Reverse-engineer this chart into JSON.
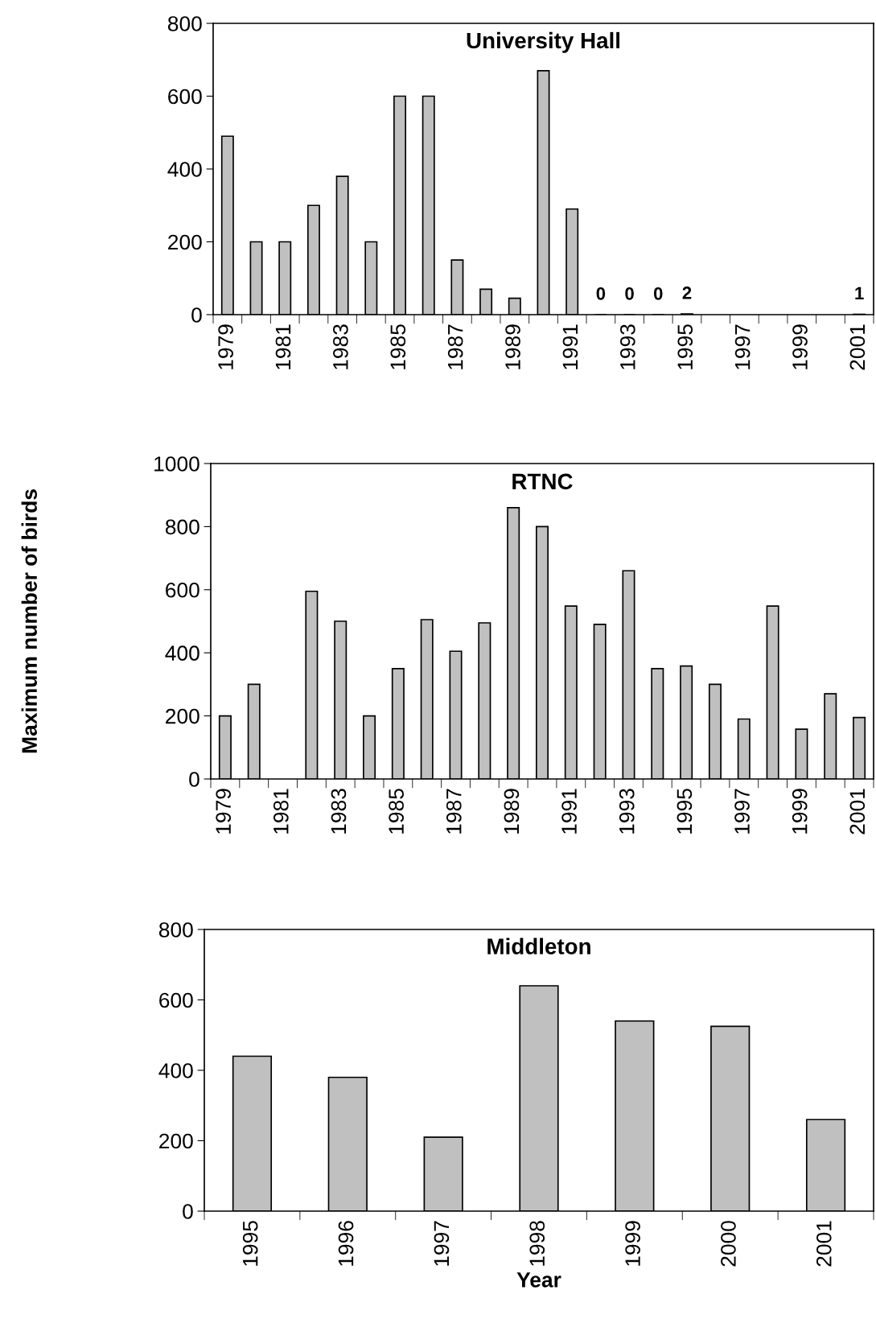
{
  "chart_data": [
    {
      "type": "bar",
      "title": "University Hall",
      "categories": [
        "1979",
        null,
        "1981",
        null,
        "1983",
        null,
        "1985",
        null,
        "1987",
        null,
        "1989",
        null,
        "1991",
        null,
        "1993",
        null,
        "1995",
        null,
        "1997",
        null,
        "1999",
        null,
        "2001"
      ],
      "values": [
        490,
        200,
        200,
        300,
        380,
        200,
        600,
        600,
        150,
        70,
        45,
        670,
        290,
        0,
        0,
        0,
        2,
        null,
        null,
        null,
        null,
        null,
        1
      ],
      "value_labels": [
        null,
        null,
        null,
        null,
        null,
        null,
        null,
        null,
        null,
        null,
        null,
        null,
        null,
        "0",
        "0",
        "0",
        "2",
        null,
        null,
        null,
        null,
        null,
        "1"
      ],
      "color": "#c0c0c0",
      "ylim": [
        0,
        800
      ],
      "yticks": [
        0,
        200,
        400,
        600,
        800
      ],
      "grid": false,
      "legend": false
    },
    {
      "type": "bar",
      "title": "RTNC",
      "ylabel": "Maximum number of birds",
      "categories": [
        "1979",
        null,
        "1981",
        null,
        "1983",
        null,
        "1985",
        null,
        "1987",
        null,
        "1989",
        null,
        "1991",
        null,
        "1993",
        null,
        "1995",
        null,
        "1997",
        null,
        "1999",
        null,
        "2001"
      ],
      "values": [
        200,
        300,
        null,
        595,
        500,
        200,
        350,
        505,
        405,
        495,
        860,
        800,
        548,
        490,
        660,
        350,
        358,
        300,
        190,
        548,
        158,
        270,
        195
      ],
      "color": "#c0c0c0",
      "ylim": [
        0,
        1000
      ],
      "yticks": [
        0,
        200,
        400,
        600,
        800,
        1000
      ],
      "grid": false,
      "legend": false
    },
    {
      "type": "bar",
      "title": "Middleton",
      "xlabel": "Year",
      "categories": [
        "1995",
        "1996",
        "1997",
        "1998",
        "1999",
        "2000",
        "2001"
      ],
      "values": [
        440,
        380,
        210,
        640,
        540,
        525,
        260
      ],
      "color": "#c0c0c0",
      "ylim": [
        0,
        800
      ],
      "yticks": [
        0,
        200,
        400,
        600,
        800
      ],
      "grid": false,
      "legend": false
    }
  ]
}
